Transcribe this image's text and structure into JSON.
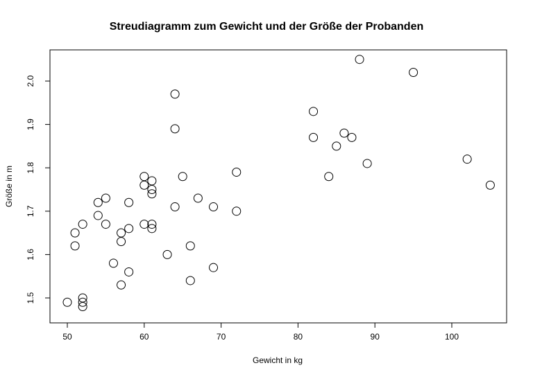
{
  "chart_data": {
    "type": "scatter",
    "title": "Streudiagramm zum Gewicht und der Größe der Probanden",
    "xlabel": "Gewicht in kg",
    "ylabel": "Größe in m",
    "xlim": [
      48,
      106
    ],
    "ylim": [
      1.46,
      2.07
    ],
    "xticks": [
      50,
      60,
      70,
      80,
      90,
      100
    ],
    "yticks": [
      1.5,
      1.6,
      1.7,
      1.8,
      1.9,
      2.0
    ],
    "ytick_labels": [
      "1.5",
      "1.6",
      "1.7",
      "1.8",
      "1.9",
      "2.0"
    ],
    "grid": false,
    "legend": null,
    "marker": "open-circle",
    "points": [
      {
        "x": 50,
        "y": 1.49
      },
      {
        "x": 51,
        "y": 1.65
      },
      {
        "x": 51,
        "y": 1.62
      },
      {
        "x": 52,
        "y": 1.5
      },
      {
        "x": 52,
        "y": 1.49
      },
      {
        "x": 52,
        "y": 1.48
      },
      {
        "x": 52,
        "y": 1.67
      },
      {
        "x": 54,
        "y": 1.72
      },
      {
        "x": 54,
        "y": 1.69
      },
      {
        "x": 55,
        "y": 1.73
      },
      {
        "x": 55,
        "y": 1.67
      },
      {
        "x": 56,
        "y": 1.58
      },
      {
        "x": 57,
        "y": 1.65
      },
      {
        "x": 57,
        "y": 1.63
      },
      {
        "x": 57,
        "y": 1.53
      },
      {
        "x": 58,
        "y": 1.72
      },
      {
        "x": 58,
        "y": 1.66
      },
      {
        "x": 58,
        "y": 1.56
      },
      {
        "x": 60,
        "y": 1.78
      },
      {
        "x": 60,
        "y": 1.76
      },
      {
        "x": 60,
        "y": 1.67
      },
      {
        "x": 61,
        "y": 1.77
      },
      {
        "x": 61,
        "y": 1.75
      },
      {
        "x": 61,
        "y": 1.74
      },
      {
        "x": 61,
        "y": 1.67
      },
      {
        "x": 61,
        "y": 1.66
      },
      {
        "x": 63,
        "y": 1.6
      },
      {
        "x": 64,
        "y": 1.97
      },
      {
        "x": 64,
        "y": 1.89
      },
      {
        "x": 64,
        "y": 1.71
      },
      {
        "x": 65,
        "y": 1.78
      },
      {
        "x": 66,
        "y": 1.62
      },
      {
        "x": 66,
        "y": 1.54
      },
      {
        "x": 67,
        "y": 1.73
      },
      {
        "x": 69,
        "y": 1.71
      },
      {
        "x": 69,
        "y": 1.57
      },
      {
        "x": 72,
        "y": 1.79
      },
      {
        "x": 72,
        "y": 1.7
      },
      {
        "x": 82,
        "y": 1.93
      },
      {
        "x": 82,
        "y": 1.87
      },
      {
        "x": 84,
        "y": 1.78
      },
      {
        "x": 85,
        "y": 1.85
      },
      {
        "x": 86,
        "y": 1.88
      },
      {
        "x": 87,
        "y": 1.87
      },
      {
        "x": 88,
        "y": 2.05
      },
      {
        "x": 89,
        "y": 1.81
      },
      {
        "x": 95,
        "y": 2.02
      },
      {
        "x": 102,
        "y": 1.82
      },
      {
        "x": 105,
        "y": 1.76
      }
    ]
  }
}
